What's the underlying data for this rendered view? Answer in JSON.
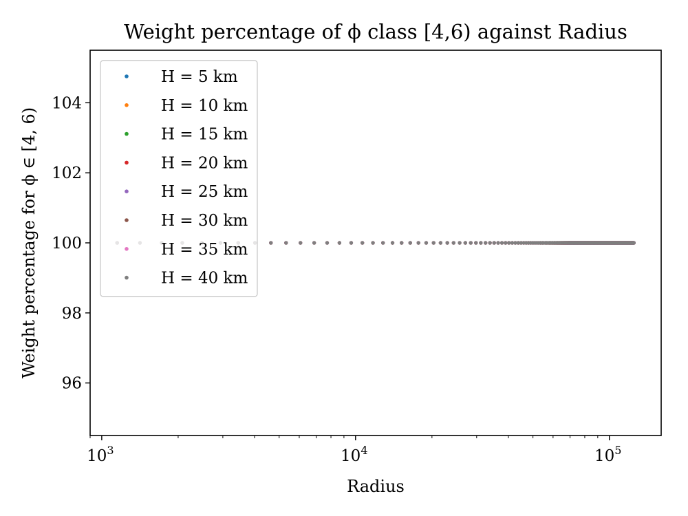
{
  "chart_data": {
    "type": "scatter",
    "title": "Weight percentage of ϕ class [4,6) against Radius",
    "xlabel": "Radius",
    "ylabel": "Weight percentage for ϕ ∈ [4, 6)",
    "xscale": "log",
    "xlim": [
      900,
      160000
    ],
    "ylim": [
      94.5,
      105.5
    ],
    "grid": false,
    "legend_position": "upper left",
    "x_ticks": [
      {
        "value": 1000,
        "base": "10",
        "exp": "3"
      },
      {
        "value": 10000,
        "base": "10",
        "exp": "4"
      },
      {
        "value": 100000,
        "base": "10",
        "exp": "5"
      }
    ],
    "y_ticks": [
      "96",
      "98",
      "100",
      "102",
      "104"
    ],
    "radius_range": [
      1150,
      125000
    ],
    "value": 100,
    "series": [
      {
        "name": "H = 5 km",
        "color": "#1f77b4"
      },
      {
        "name": "H = 10 km",
        "color": "#ff7f0e"
      },
      {
        "name": "H = 15 km",
        "color": "#2ca02c"
      },
      {
        "name": "H = 20 km",
        "color": "#d62728"
      },
      {
        "name": "H = 25 km",
        "color": "#9467bd"
      },
      {
        "name": "H = 30 km",
        "color": "#8c564b"
      },
      {
        "name": "H = 35 km",
        "color": "#e377c2"
      },
      {
        "name": "H = 40 km",
        "color": "#7f7f7f"
      }
    ]
  }
}
